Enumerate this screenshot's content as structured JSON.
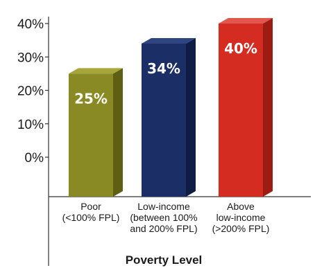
{
  "chart_data": {
    "type": "bar",
    "title": "",
    "xlabel": "Poverty Level",
    "ylabel": "",
    "ylim": [
      0,
      40
    ],
    "ytick_labels": [
      "0%",
      "10%",
      "20%",
      "30%",
      "40%"
    ],
    "yticks": [
      0,
      10,
      20,
      30,
      40
    ],
    "grid": false,
    "categories": [
      [
        "Poor",
        "(<100% FPL)"
      ],
      [
        "Low-income",
        "(between 100%",
        "and 200% FPL)"
      ],
      [
        "Above",
        "low-income",
        "(>200% FPL)"
      ]
    ],
    "values": [
      25,
      34,
      40
    ],
    "data_labels": [
      "25%",
      "34%",
      "40%"
    ],
    "bar_colors": [
      "#8a8a25",
      "#1b2e66",
      "#d42c20"
    ],
    "bar_side_colors": [
      "#5f5f14",
      "#0f1c44",
      "#9c1c14"
    ],
    "bar_top_colors": [
      "#a6a63a",
      "#2f4582",
      "#e2574c"
    ]
  }
}
